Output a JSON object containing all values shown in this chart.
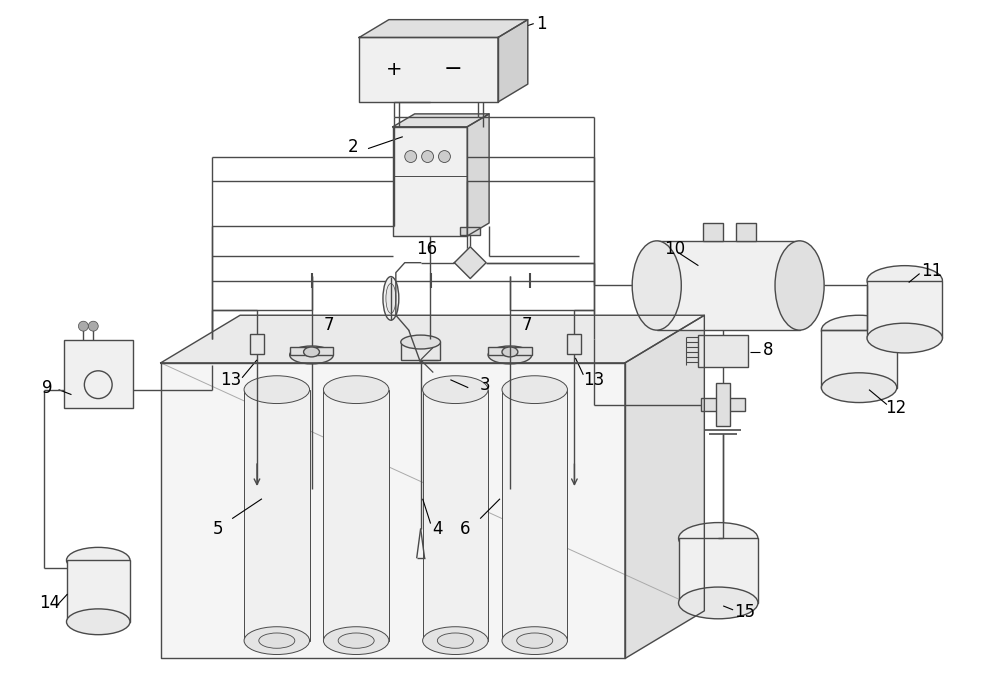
{
  "bg_color": "#ffffff",
  "lc": "#4a4a4a",
  "lw": 1.0,
  "fs": 12
}
